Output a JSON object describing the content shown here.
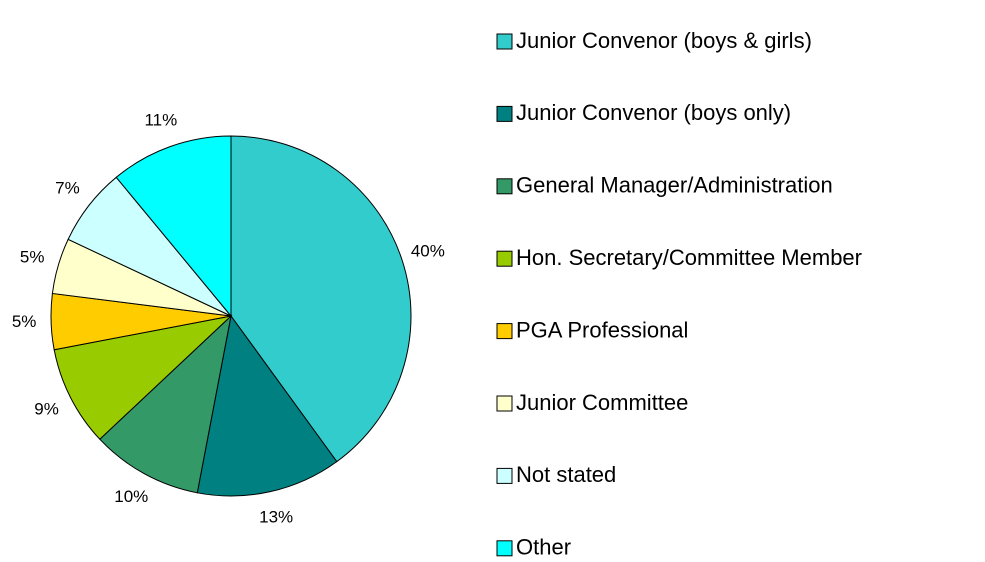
{
  "chart_data": {
    "type": "pie",
    "categories": [
      "Junior Convenor (boys & girls)",
      "Junior Convenor (boys only)",
      "General Manager/Administration",
      "Hon. Secretary/Committee Member",
      "PGA Professional",
      "Junior Committee",
      "Not stated",
      "Other"
    ],
    "values": [
      40,
      13,
      10,
      9,
      5,
      5,
      7,
      11
    ],
    "value_labels": [
      "40%",
      "13%",
      "10%",
      "9%",
      "5%",
      "5%",
      "7%",
      "11%"
    ],
    "colors": [
      "#33CCCC",
      "#008080",
      "#339966",
      "#99CC00",
      "#FFCC00",
      "#FFFFCC",
      "#CCFFFF",
      "#00FFFF"
    ],
    "legend": "right"
  }
}
